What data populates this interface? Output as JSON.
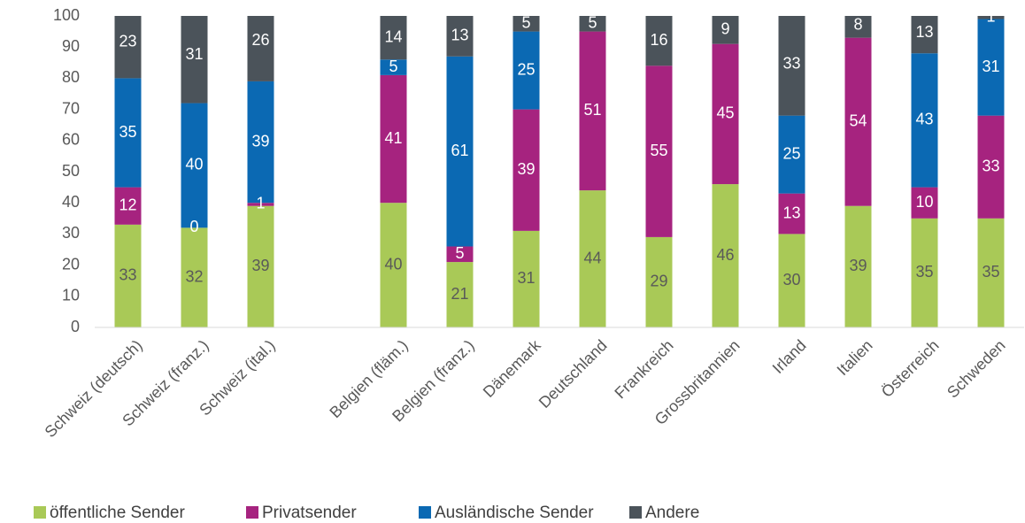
{
  "chart_data": {
    "type": "stacked_bar",
    "categories": [
      "Schweiz (deutsch)",
      "Schweiz (franz.)",
      "Schweiz (ital.)",
      null,
      "Belgien (fläm.)",
      "Belgien (franz.)",
      "Dänemark",
      "Deutschland",
      "Frankreich",
      "Grossbritannien",
      "Irland",
      "Italien",
      "Österreich",
      "Schweden"
    ],
    "series": [
      {
        "name": "öffentliche Sender",
        "color": "#a9c957",
        "label_color": "#595959",
        "values": [
          33,
          32,
          39,
          null,
          40,
          21,
          31,
          44,
          29,
          46,
          30,
          39,
          35,
          35
        ]
      },
      {
        "name": "Privatsender",
        "color": "#a6237f",
        "label_color": "#ffffff",
        "values": [
          12,
          0,
          1,
          null,
          41,
          5,
          39,
          51,
          55,
          45,
          13,
          54,
          10,
          33
        ]
      },
      {
        "name": "Ausländische Sender",
        "color": "#0b69b3",
        "label_color": "#ffffff",
        "values": [
          35,
          40,
          39,
          null,
          5,
          61,
          25,
          null,
          null,
          null,
          25,
          null,
          43,
          31
        ]
      },
      {
        "name": "Andere",
        "color": "#4b535a",
        "label_color": "#ffffff",
        "values": [
          23,
          31,
          26,
          null,
          14,
          13,
          5,
          5,
          16,
          9,
          33,
          8,
          13,
          1
        ]
      }
    ],
    "ylim": [
      0,
      100
    ],
    "yticks": [
      0,
      10,
      20,
      30,
      40,
      50,
      60,
      70,
      80,
      90,
      100
    ],
    "grid": false,
    "legend": "bottom"
  }
}
